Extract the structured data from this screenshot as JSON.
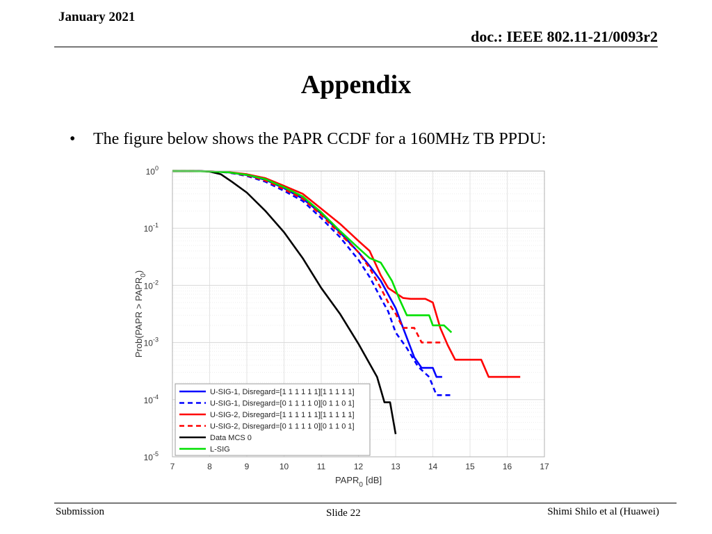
{
  "header": {
    "date": "January 2021",
    "doc": "doc.: IEEE 802.11-21/0093r2"
  },
  "slide": {
    "title": "Appendix",
    "bullet": "The figure below shows the PAPR CCDF for a 160MHz TB PPDU:"
  },
  "footer": {
    "left": "Submission",
    "center": "Slide 22",
    "right": "Shimi Shilo et al (Huawei)"
  },
  "chart_data": {
    "type": "line",
    "xlabel_main": "PAPR",
    "xlabel_sub": "0",
    "xlabel_unit": "[dB]",
    "ylabel_main": "Prob(PAPR > PAPR",
    "ylabel_sub": "0",
    "ylabel_close": ")",
    "xlim": [
      7,
      17
    ],
    "ylim": [
      1e-05,
      1
    ],
    "yscale": "log",
    "xticks": [
      7,
      8,
      9,
      10,
      11,
      12,
      13,
      14,
      15,
      16,
      17
    ],
    "yticks": [
      {
        "value": 1,
        "base": "10",
        "exp": "0"
      },
      {
        "value": 0.1,
        "base": "10",
        "exp": "-1"
      },
      {
        "value": 0.01,
        "base": "10",
        "exp": "-2"
      },
      {
        "value": 0.001,
        "base": "10",
        "exp": "-3"
      },
      {
        "value": 0.0001,
        "base": "10",
        "exp": "-4"
      },
      {
        "value": 1e-05,
        "base": "10",
        "exp": "-5"
      }
    ],
    "grid": true,
    "legend_position": "bottom-left",
    "series": [
      {
        "name": "U-SIG-1, Disregard=[1 1 1 1 1 1][1 1 1 1 1]",
        "color": "#0000ff",
        "dash": "solid",
        "points": [
          [
            7,
            1
          ],
          [
            7.5,
            1
          ],
          [
            8,
            0.99
          ],
          [
            8.5,
            0.95
          ],
          [
            9,
            0.85
          ],
          [
            9.5,
            0.7
          ],
          [
            10,
            0.5
          ],
          [
            10.5,
            0.33
          ],
          [
            11,
            0.18
          ],
          [
            11.5,
            0.085
          ],
          [
            12,
            0.038
          ],
          [
            12.3,
            0.022
          ],
          [
            12.6,
            0.012
          ],
          [
            13,
            0.004
          ],
          [
            13.2,
            0.0018
          ],
          [
            13.5,
            0.00055
          ],
          [
            13.7,
            0.00036
          ],
          [
            14,
            0.00036
          ],
          [
            14.1,
            0.00025
          ],
          [
            14.25,
            0.00025
          ]
        ]
      },
      {
        "name": "U-SIG-1, Disregard=[0 1 1 1 1 0][0 1 1 0 1]",
        "color": "#0000ff",
        "dash": "dashed",
        "points": [
          [
            7,
            1
          ],
          [
            7.5,
            1
          ],
          [
            8,
            0.99
          ],
          [
            8.5,
            0.94
          ],
          [
            9,
            0.82
          ],
          [
            9.5,
            0.65
          ],
          [
            10,
            0.45
          ],
          [
            10.5,
            0.3
          ],
          [
            11,
            0.15
          ],
          [
            11.5,
            0.07
          ],
          [
            12,
            0.028
          ],
          [
            12.3,
            0.014
          ],
          [
            12.6,
            0.006
          ],
          [
            12.8,
            0.0035
          ],
          [
            13,
            0.0015
          ],
          [
            13.3,
            0.0008
          ],
          [
            13.6,
            0.00038
          ],
          [
            13.9,
            0.00025
          ],
          [
            14.1,
            0.00012
          ],
          [
            14.5,
            0.00012
          ]
        ]
      },
      {
        "name": "U-SIG-2, Disregard=[1 1 1 1 1 1][1 1 1 1 1]",
        "color": "#ff0000",
        "dash": "solid",
        "points": [
          [
            7,
            1
          ],
          [
            7.5,
            1
          ],
          [
            8,
            0.99
          ],
          [
            8.5,
            0.96
          ],
          [
            9,
            0.88
          ],
          [
            9.5,
            0.75
          ],
          [
            10,
            0.55
          ],
          [
            10.5,
            0.4
          ],
          [
            11,
            0.22
          ],
          [
            11.5,
            0.12
          ],
          [
            12,
            0.06
          ],
          [
            12.3,
            0.04
          ],
          [
            12.6,
            0.015
          ],
          [
            12.8,
            0.009
          ],
          [
            13.2,
            0.006
          ],
          [
            13.4,
            0.0058
          ],
          [
            13.8,
            0.0058
          ],
          [
            14.0,
            0.005
          ],
          [
            14.2,
            0.0018
          ],
          [
            14.4,
            0.0009
          ],
          [
            14.6,
            0.0005
          ],
          [
            15.3,
            0.0005
          ],
          [
            15.5,
            0.00025
          ],
          [
            16.35,
            0.00025
          ]
        ]
      },
      {
        "name": "U-SIG-2, Disregard=[0 1 1 1 1 0][0 1 1 0 1]",
        "color": "#ff0000",
        "dash": "dashed",
        "points": [
          [
            7,
            1
          ],
          [
            7.5,
            1
          ],
          [
            8,
            0.99
          ],
          [
            8.5,
            0.95
          ],
          [
            9,
            0.84
          ],
          [
            9.5,
            0.68
          ],
          [
            10,
            0.48
          ],
          [
            10.5,
            0.33
          ],
          [
            11,
            0.17
          ],
          [
            11.5,
            0.08
          ],
          [
            12,
            0.038
          ],
          [
            12.3,
            0.02
          ],
          [
            12.6,
            0.009
          ],
          [
            12.8,
            0.005
          ],
          [
            13,
            0.0032
          ],
          [
            13.2,
            0.0018
          ],
          [
            13.5,
            0.0018
          ],
          [
            13.7,
            0.001
          ],
          [
            14.3,
            0.001
          ]
        ]
      },
      {
        "name": "Data MCS 0",
        "color": "#000000",
        "dash": "solid",
        "points": [
          [
            7,
            1
          ],
          [
            7.8,
            1
          ],
          [
            8,
            0.98
          ],
          [
            8.3,
            0.88
          ],
          [
            8.6,
            0.65
          ],
          [
            9,
            0.42
          ],
          [
            9.5,
            0.2
          ],
          [
            10,
            0.085
          ],
          [
            10.5,
            0.03
          ],
          [
            11,
            0.009
          ],
          [
            11.5,
            0.0032
          ],
          [
            12,
            0.00095
          ],
          [
            12.5,
            0.00025
          ],
          [
            12.6,
            0.00015
          ],
          [
            12.7,
            9e-05
          ],
          [
            12.85,
            9e-05
          ],
          [
            13,
            2.5e-05
          ]
        ]
      },
      {
        "name": "L-SIG",
        "color": "#00e000",
        "dash": "solid",
        "points": [
          [
            7,
            1
          ],
          [
            7.5,
            1
          ],
          [
            8,
            0.99
          ],
          [
            8.5,
            0.95
          ],
          [
            9,
            0.86
          ],
          [
            9.5,
            0.72
          ],
          [
            10,
            0.52
          ],
          [
            10.5,
            0.36
          ],
          [
            11,
            0.19
          ],
          [
            11.5,
            0.09
          ],
          [
            12,
            0.045
          ],
          [
            12.3,
            0.03
          ],
          [
            12.6,
            0.025
          ],
          [
            12.9,
            0.012
          ],
          [
            13.1,
            0.0058
          ],
          [
            13.3,
            0.003
          ],
          [
            13.9,
            0.003
          ],
          [
            14.0,
            0.002
          ],
          [
            14.3,
            0.002
          ],
          [
            14.5,
            0.0015
          ]
        ]
      }
    ]
  }
}
